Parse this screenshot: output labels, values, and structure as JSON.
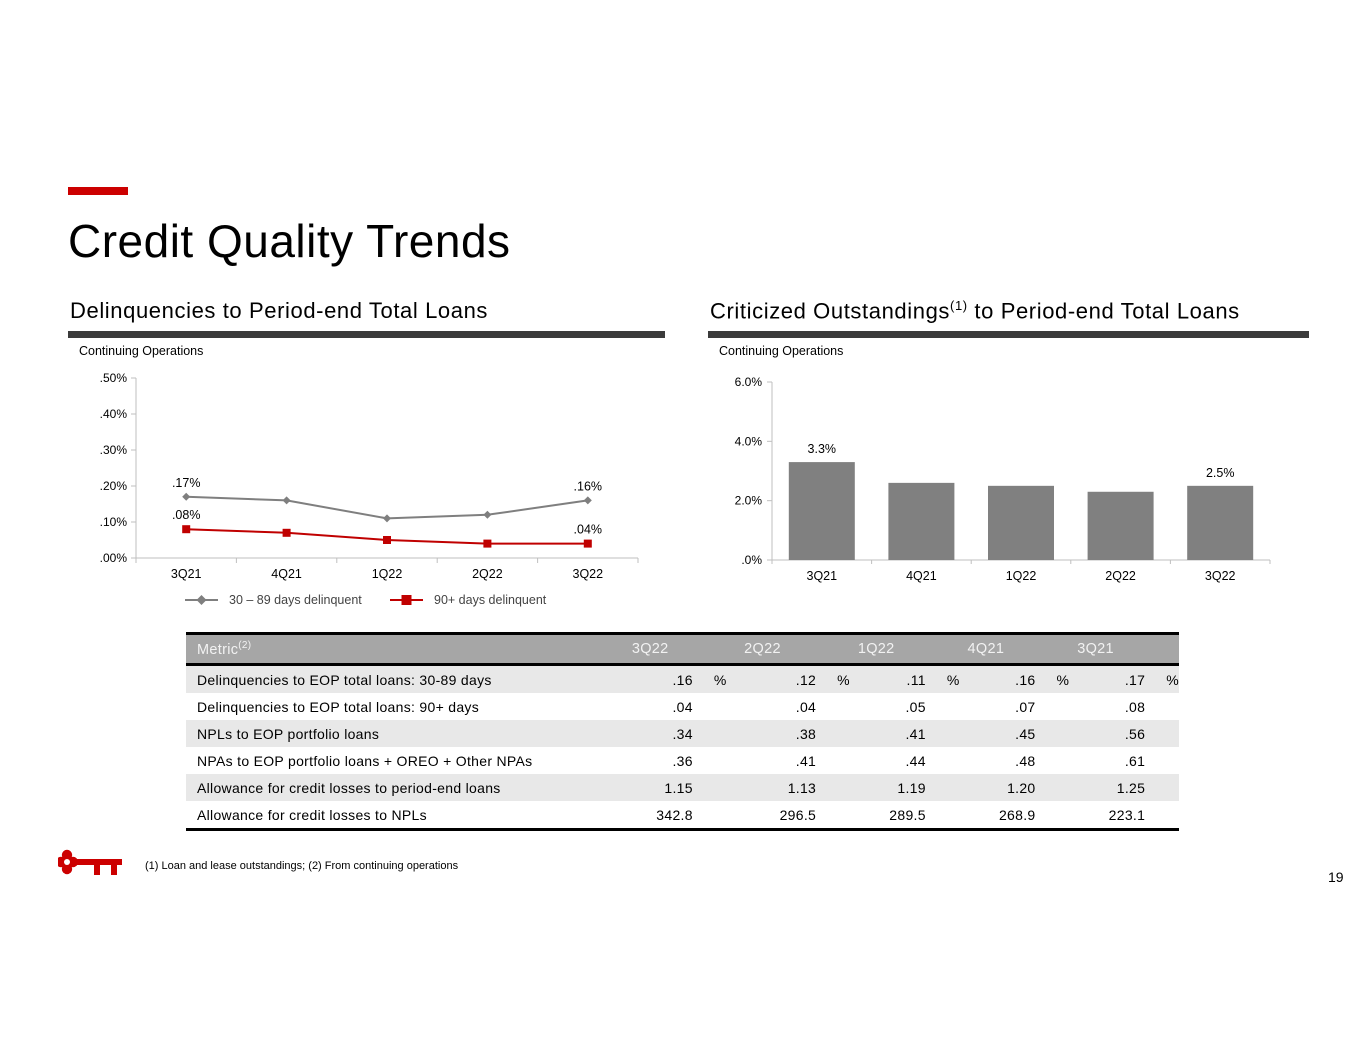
{
  "page_title": "Credit Quality Trends",
  "left_panel": {
    "title": "Delinquencies to Period-end Total Loans",
    "note": "Continuing Operations"
  },
  "right_panel": {
    "title": "Criticized Outstandings",
    "title_sup": "(1)",
    "title_rest": " to Period-end Total Loans",
    "note": "Continuing Operations"
  },
  "colors": {
    "accent": "#cc0000",
    "rule": "#3b3b3b",
    "gray_series": "#7f7f7f",
    "red_series": "#c00000",
    "bar": "#808080",
    "table_header": "#a6a6a6",
    "row_band": "#e8e8e8"
  },
  "chart_data": [
    {
      "type": "line",
      "categories": [
        "3Q21",
        "4Q21",
        "1Q22",
        "2Q22",
        "3Q22"
      ],
      "yticks": [
        ".00%",
        ".10%",
        ".20%",
        ".30%",
        ".40%",
        ".50%"
      ],
      "ylim": [
        0,
        0.5
      ],
      "grid": false,
      "legend": "bottom",
      "series": [
        {
          "name": "30 – 89 days delinquent",
          "values": [
            0.17,
            0.16,
            0.11,
            0.12,
            0.16
          ],
          "marker": "diamond",
          "color": "#7f7f7f",
          "labels": [
            ".17%",
            "",
            "",
            "",
            ".16%"
          ]
        },
        {
          "name": "90+ days delinquent",
          "values": [
            0.08,
            0.07,
            0.05,
            0.04,
            0.04
          ],
          "marker": "square",
          "color": "#c00000",
          "labels": [
            ".08%",
            "",
            "",
            "",
            ".04%"
          ]
        }
      ]
    },
    {
      "type": "bar",
      "categories": [
        "3Q21",
        "4Q21",
        "1Q22",
        "2Q22",
        "3Q22"
      ],
      "values": [
        3.3,
        2.6,
        2.5,
        2.3,
        2.5
      ],
      "labels": [
        "3.3%",
        "",
        "",
        "",
        "2.5%"
      ],
      "yticks": [
        ".0%",
        "2.0%",
        "4.0%",
        "6.0%"
      ],
      "ylim": [
        0,
        6
      ],
      "grid": false
    }
  ],
  "table": {
    "header": {
      "metric": "Metric",
      "metric_sup": "(2)",
      "cols": [
        "3Q22",
        "2Q22",
        "1Q22",
        "4Q21",
        "3Q21"
      ]
    },
    "rows": [
      {
        "label": "Delinquencies to EOP total loans: 30-89 days",
        "values": [
          ".16",
          ".12",
          ".11",
          ".16",
          ".17"
        ],
        "units": [
          "%",
          "%",
          "%",
          "%",
          "%"
        ]
      },
      {
        "label": "Delinquencies to EOP total loans: 90+ days",
        "values": [
          ".04",
          ".04",
          ".05",
          ".07",
          ".08"
        ],
        "units": [
          "",
          "",
          "",
          "",
          ""
        ]
      },
      {
        "label": "NPLs to EOP portfolio loans",
        "values": [
          ".34",
          ".38",
          ".41",
          ".45",
          ".56"
        ],
        "units": [
          "",
          "",
          "",
          "",
          ""
        ]
      },
      {
        "label": "NPAs to EOP portfolio loans + OREO + Other NPAs",
        "values": [
          ".36",
          ".41",
          ".44",
          ".48",
          ".61"
        ],
        "units": [
          "",
          "",
          "",
          "",
          ""
        ]
      },
      {
        "label": "Allowance for credit losses to period-end loans",
        "values": [
          "1.15",
          "1.13",
          "1.19",
          "1.20",
          "1.25"
        ],
        "units": [
          "",
          "",
          "",
          "",
          ""
        ]
      },
      {
        "label": "Allowance for credit losses to NPLs",
        "values": [
          "342.8",
          "296.5",
          "289.5",
          "268.9",
          "223.1"
        ],
        "units": [
          "",
          "",
          "",
          "",
          ""
        ]
      }
    ]
  },
  "footnote": "(1) Loan and lease outstandings; (2) From continuing operations",
  "page_number": "19",
  "logo_icon": "key-logo-icon"
}
